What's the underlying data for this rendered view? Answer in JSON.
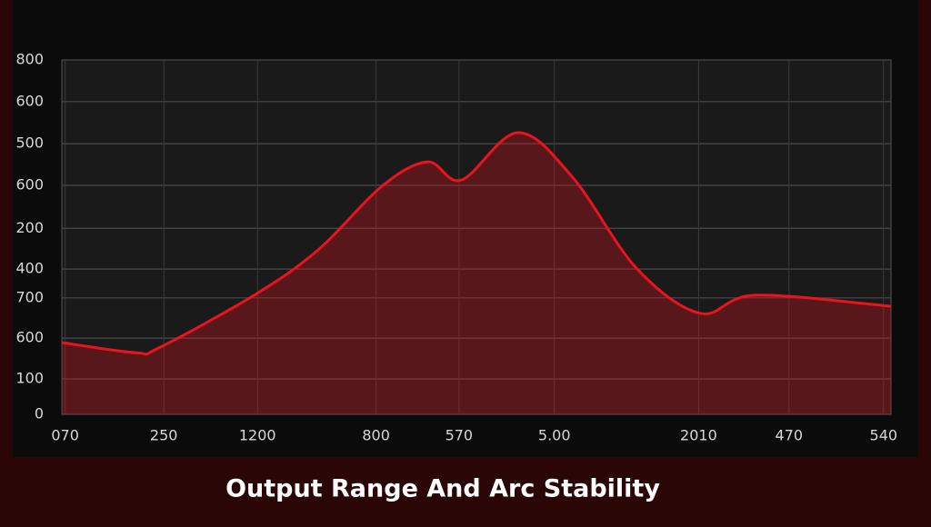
{
  "chart_data": {
    "type": "area",
    "title": "Output Range And Arc Stability",
    "x": [
      0,
      9.0,
      11.7,
      23.2,
      30.9,
      38.6,
      44.1,
      48.2,
      55.0,
      61.6,
      69.3,
      77.0,
      83.6,
      100
    ],
    "series": [
      {
        "color": "#e8141e",
        "values": [
          162,
          139,
          150,
          269,
          371,
          515,
          570,
          529,
          636,
          535,
          330,
          228,
          269,
          244
        ]
      }
    ],
    "xlim": [
      0,
      100
    ],
    "xticks": [
      {
        "value": 0.4,
        "label": "070"
      },
      {
        "value": 12.3,
        "label": "250"
      },
      {
        "value": 23.6,
        "label": "1200"
      },
      {
        "value": 37.9,
        "label": "800"
      },
      {
        "value": 47.9,
        "label": "570"
      },
      {
        "value": 59.4,
        "label": "5.00"
      },
      {
        "value": 76.8,
        "label": "2010"
      },
      {
        "value": 87.7,
        "label": "470"
      },
      {
        "value": 99.1,
        "label": "540"
      }
    ],
    "ylim": [
      0,
      800
    ],
    "yticks": [
      0,
      {
        "value": 80,
        "label": "100"
      },
      {
        "value": 172,
        "label": "600"
      },
      {
        "value": 263,
        "label": "700"
      },
      {
        "value": 328,
        "label": "400"
      },
      {
        "value": 420,
        "label": "200"
      },
      {
        "value": 517,
        "label": "600"
      },
      {
        "value": 611,
        "label": "500"
      },
      {
        "value": 706,
        "label": "600"
      },
      800
    ],
    "grid": true
  }
}
